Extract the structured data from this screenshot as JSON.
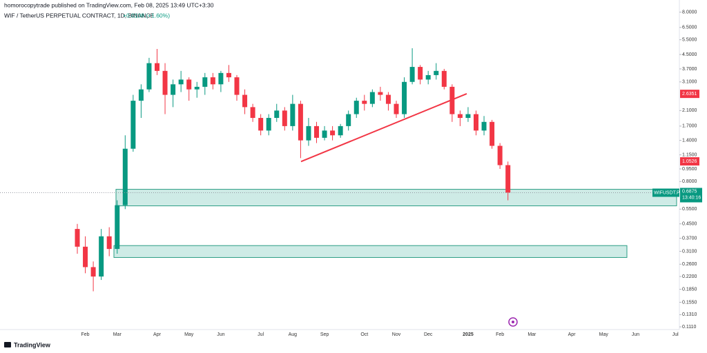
{
  "chart_data": {
    "type": "candlestick",
    "title": "WIF / TetherUS PERPETUAL CONTRACT, 1D, BINANCE",
    "change": "+0.0108 (+1.60%)",
    "publisher": "homorocopytrade published on TradingView.com, Feb 08, 2025 13:49 UTC+3:30",
    "brand": "TradingView",
    "log_scale": true,
    "up_color": "#089981",
    "down_color": "#f23645",
    "categories": [
      null,
      "Feb",
      null,
      null,
      null,
      "Mar",
      null,
      null,
      null,
      null,
      "Apr",
      null,
      null,
      null,
      "May",
      null,
      null,
      null,
      "Jun",
      null,
      null,
      null,
      null,
      "Jul",
      null,
      null,
      null,
      "Aug",
      null,
      null,
      null,
      "Sep",
      null,
      null,
      null,
      null,
      "Oct",
      null,
      null,
      null,
      "Nov",
      null,
      null,
      null,
      "Dec",
      null,
      null,
      null,
      null,
      "2025",
      null,
      null,
      null,
      "Feb",
      null,
      null,
      null,
      "Mar",
      null,
      null,
      null,
      null,
      "Apr",
      null,
      null,
      null,
      "May",
      null,
      null,
      null,
      "Jun",
      null,
      null,
      null,
      null,
      "Jul"
    ],
    "ohlc": {
      "open": [
        0.42,
        0.33,
        0.25,
        0.22,
        0.38,
        0.32,
        0.58,
        1.25,
        2.4,
        2.8,
        4.0,
        3.6,
        2.6,
        3.0,
        3.2,
        2.8,
        2.9,
        3.3,
        3.0,
        3.5,
        3.3,
        2.6,
        2.2,
        1.9,
        1.6,
        1.9,
        2.1,
        1.7,
        2.3,
        1.4,
        1.7,
        1.45,
        1.6,
        1.5,
        1.7,
        2.0,
        2.4,
        2.3,
        2.7,
        2.6,
        2.3,
        2.0,
        3.1,
        3.8,
        3.2,
        3.4,
        3.6,
        2.9,
        2.0,
        1.9,
        2.0,
        1.6,
        1.8,
        1.3,
        1.0,
        null,
        null,
        null,
        null,
        null,
        null,
        null,
        null,
        null,
        null,
        null,
        null,
        null,
        null,
        null,
        null,
        null,
        null,
        null,
        null,
        null
      ],
      "high": [
        0.45,
        0.38,
        0.27,
        0.42,
        0.43,
        0.62,
        1.5,
        2.6,
        3.0,
        4.3,
        4.85,
        4.0,
        3.2,
        3.6,
        3.3,
        3.1,
        3.5,
        3.5,
        3.6,
        3.9,
        3.4,
        2.8,
        2.3,
        2.0,
        2.0,
        2.3,
        2.2,
        2.6,
        2.4,
        1.9,
        1.8,
        1.7,
        1.7,
        1.75,
        2.1,
        2.5,
        2.6,
        2.8,
        2.9,
        2.7,
        2.4,
        3.3,
        4.9,
        3.9,
        3.6,
        4.0,
        3.7,
        3.0,
        2.1,
        2.2,
        2.1,
        1.95,
        1.85,
        1.35,
        1.05,
        null,
        null,
        null,
        null,
        null,
        null,
        null,
        null,
        null,
        null,
        null,
        null,
        null,
        null,
        null,
        null,
        null,
        null,
        null,
        null,
        null
      ],
      "low": [
        0.3,
        0.23,
        0.18,
        0.21,
        0.29,
        0.3,
        0.55,
        1.2,
        1.9,
        2.7,
        3.4,
        2.0,
        2.2,
        2.7,
        2.4,
        2.5,
        2.6,
        2.8,
        2.7,
        3.1,
        2.4,
        2.0,
        1.8,
        1.5,
        1.5,
        1.8,
        1.6,
        1.6,
        1.1,
        1.3,
        1.35,
        1.4,
        1.4,
        1.45,
        1.6,
        1.9,
        2.1,
        2.2,
        2.4,
        2.1,
        1.9,
        1.9,
        3.0,
        3.0,
        3.0,
        3.2,
        2.8,
        1.8,
        1.7,
        1.8,
        1.5,
        1.5,
        1.25,
        0.95,
        0.62,
        null,
        null,
        null,
        null,
        null,
        null,
        null,
        null,
        null,
        null,
        null,
        null,
        null,
        null,
        null,
        null,
        null,
        null,
        null,
        null,
        null
      ],
      "close": [
        0.33,
        0.25,
        0.22,
        0.38,
        0.32,
        0.58,
        1.25,
        2.4,
        2.8,
        4.0,
        3.6,
        2.6,
        3.0,
        3.2,
        2.8,
        2.9,
        3.3,
        3.0,
        3.5,
        3.3,
        2.6,
        2.2,
        1.9,
        1.6,
        1.9,
        2.1,
        1.7,
        2.3,
        1.4,
        1.7,
        1.45,
        1.6,
        1.5,
        1.7,
        2.0,
        2.4,
        2.3,
        2.7,
        2.6,
        2.3,
        2.0,
        3.1,
        3.8,
        3.2,
        3.4,
        3.6,
        2.9,
        2.0,
        1.9,
        2.0,
        1.6,
        1.8,
        1.3,
        1.0,
        0.6875,
        null,
        null,
        null,
        null,
        null,
        null,
        null,
        null,
        null,
        null,
        null,
        null,
        null,
        null,
        null,
        null,
        null,
        null,
        null,
        null,
        null
      ]
    },
    "ylim": [
      0.108,
      8.2
    ],
    "yticks": [
      {
        "value": 8,
        "label": "8.0000"
      },
      {
        "value": 6.5,
        "label": "6.5000"
      },
      {
        "value": 5.5,
        "label": "5.5000"
      },
      {
        "value": 4.5,
        "label": "4.5000"
      },
      {
        "value": 3.7,
        "label": "3.7000"
      },
      {
        "value": 3.1,
        "label": "3.1000"
      },
      {
        "value": 2.1,
        "label": "2.1000"
      },
      {
        "value": 1.7,
        "label": "1.7000"
      },
      {
        "value": 1.4,
        "label": "1.4000"
      },
      {
        "value": 1.15,
        "label": "1.1500"
      },
      {
        "value": 0.95,
        "label": "0.9500"
      },
      {
        "value": 0.8,
        "label": "0.8000"
      },
      {
        "value": 0.55,
        "label": "0.5500"
      },
      {
        "value": 0.45,
        "label": "0.4500"
      },
      {
        "value": 0.37,
        "label": "0.3700"
      },
      {
        "value": 0.31,
        "label": "0.3100"
      },
      {
        "value": 0.26,
        "label": "0.2600"
      },
      {
        "value": 0.22,
        "label": "0.2200"
      },
      {
        "value": 0.185,
        "label": "0.1850"
      },
      {
        "value": 0.155,
        "label": "0.1550"
      },
      {
        "value": 0.131,
        "label": "0.1310"
      },
      {
        "value": 0.111,
        "label": "0.1110"
      }
    ],
    "price_tags": [
      {
        "value": 2.6351,
        "color": "#f23645"
      },
      {
        "value": 1.0526,
        "color": "#f23645"
      }
    ],
    "last_price": {
      "symbol": "WIFUSDT.P",
      "value": 0.6875,
      "countdown": "13:40:16",
      "color": "#089981"
    },
    "zones": [
      {
        "top": 0.72,
        "bottom": 0.575
      },
      {
        "top": 0.335,
        "bottom": 0.285
      }
    ],
    "trendline": {
      "start": 1.05,
      "end": 2.64,
      "color": "#f23645"
    }
  }
}
